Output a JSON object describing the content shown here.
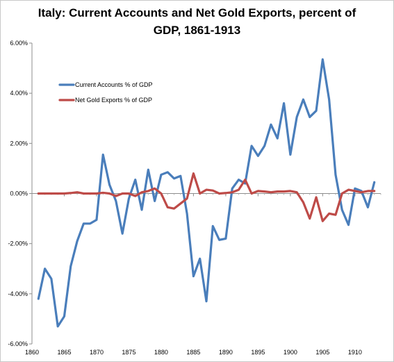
{
  "chart_data": {
    "type": "line",
    "title_line1": "Italy: Current Accounts and Net Gold Exports, percent of",
    "title_line2": "GDP, 1861-1913",
    "xlabel": "",
    "ylabel": "",
    "xlim": [
      1860,
      1914
    ],
    "ylim": [
      -6,
      6
    ],
    "y_ticks": [
      "6.00%",
      "4.00%",
      "2.00%",
      "0.00%",
      "-2.00%",
      "-4.00%",
      "-6.00%"
    ],
    "y_tick_values": [
      6,
      4,
      2,
      0,
      -2,
      -4,
      -6
    ],
    "x_ticks": [
      "1860",
      "1865",
      "1870",
      "1875",
      "1880",
      "1885",
      "1890",
      "1895",
      "1900",
      "1905",
      "1910"
    ],
    "x_tick_values": [
      1860,
      1865,
      1870,
      1875,
      1880,
      1885,
      1890,
      1895,
      1900,
      1905,
      1910
    ],
    "grid": false,
    "legend_position": "top-left",
    "x": [
      1861,
      1862,
      1863,
      1864,
      1865,
      1866,
      1867,
      1868,
      1869,
      1870,
      1871,
      1872,
      1873,
      1874,
      1875,
      1876,
      1877,
      1878,
      1879,
      1880,
      1881,
      1882,
      1883,
      1884,
      1885,
      1886,
      1887,
      1888,
      1889,
      1890,
      1891,
      1892,
      1893,
      1894,
      1895,
      1896,
      1897,
      1898,
      1899,
      1900,
      1901,
      1902,
      1903,
      1904,
      1905,
      1906,
      1907,
      1908,
      1909,
      1910,
      1911,
      1912,
      1913
    ],
    "series": [
      {
        "name": "Current Accounts % of GDP",
        "color": "#4a7ebb",
        "values": [
          -4.2,
          -3.0,
          -3.4,
          -5.3,
          -4.9,
          -2.9,
          -1.9,
          -1.2,
          -1.2,
          -1.05,
          1.55,
          0.35,
          -0.3,
          -1.6,
          -0.2,
          0.55,
          -0.65,
          0.95,
          -0.3,
          0.75,
          0.85,
          0.6,
          0.7,
          -0.8,
          -3.3,
          -2.6,
          -4.3,
          -1.3,
          -1.85,
          -1.8,
          0.2,
          0.55,
          0.4,
          1.9,
          1.5,
          1.9,
          2.75,
          2.2,
          3.6,
          1.55,
          3.05,
          3.75,
          3.05,
          3.3,
          5.35,
          3.75,
          0.75,
          -0.65,
          -1.25,
          0.2,
          0.1,
          -0.55,
          0.45
        ]
      },
      {
        "name": "Net Gold Exports % of GDP",
        "color": "#be4b48",
        "values": [
          0,
          0,
          0,
          0,
          0,
          0.02,
          0.05,
          0,
          0,
          0,
          0.03,
          0,
          -0.1,
          0,
          0,
          -0.1,
          0.05,
          0.1,
          0.2,
          0,
          -0.55,
          -0.6,
          -0.4,
          -0.2,
          0.8,
          0,
          0.15,
          0.12,
          0,
          0.02,
          0.05,
          0.15,
          0.55,
          0,
          0.1,
          0.08,
          0.05,
          0.08,
          0.08,
          0.1,
          0.05,
          -0.35,
          -1.0,
          -0.15,
          -1.1,
          -0.8,
          -0.85,
          0,
          0.15,
          0.1,
          0.05,
          0.1,
          0.1
        ]
      }
    ]
  }
}
